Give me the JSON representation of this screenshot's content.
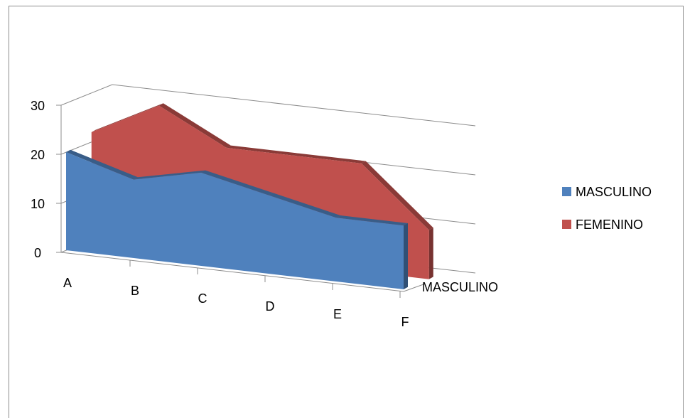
{
  "chart_data": {
    "type": "area",
    "categories": [
      "A",
      "B",
      "C",
      "D",
      "E",
      "F"
    ],
    "series": [
      {
        "name": "MASCULINO",
        "values": [
          20,
          16,
          19,
          16,
          13,
          13
        ],
        "color": "#4f81bd"
      },
      {
        "name": "FEMENINO",
        "values": [
          22,
          29,
          22,
          22,
          22,
          10
        ],
        "color": "#c0504d"
      }
    ],
    "yticks": [
      0,
      10,
      20,
      30
    ],
    "ylim": [
      0,
      30
    ],
    "depth_axis_labels": [
      "MASCULINO"
    ],
    "legend": {
      "position": "right",
      "entries": [
        "MASCULINO",
        "FEMENINO"
      ]
    },
    "gridlines": true,
    "projection": "3d"
  }
}
